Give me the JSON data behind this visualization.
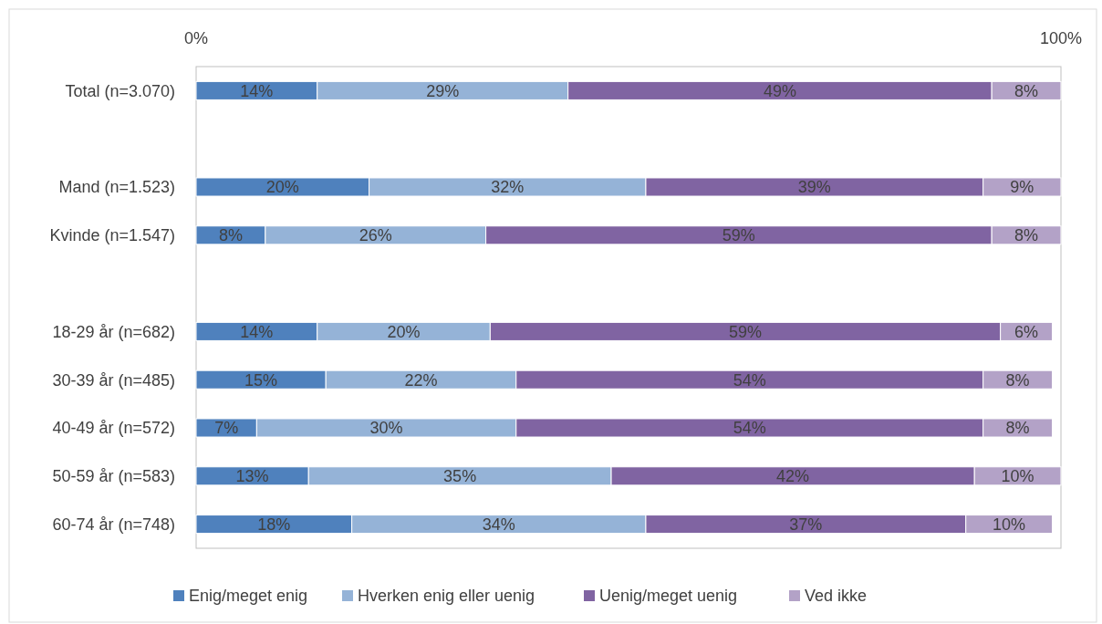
{
  "chart_data": {
    "type": "bar",
    "orientation": "horizontal",
    "stacked": true,
    "categories": [
      "Total (n=3.070)",
      null,
      "Mand (n=1.523)",
      "Kvinde (n=1.547)",
      null,
      "18-29 år (n=682)",
      "30-39 år (n=485)",
      "40-49 år (n=572)",
      "50-59 år (n=583)",
      "60-74 år (n=748)"
    ],
    "series": [
      {
        "name": "Enig/meget enig",
        "color": "#4f81bd",
        "values": [
          14,
          null,
          20,
          8,
          null,
          14,
          15,
          7,
          13,
          18
        ],
        "value_labels": [
          "14%",
          null,
          "20%",
          "8%",
          null,
          "14%",
          "15%",
          "7%",
          "13%",
          "18%"
        ]
      },
      {
        "name": "Hverken enig eller uenig",
        "color": "#95b3d7",
        "values": [
          29,
          null,
          32,
          25.5,
          null,
          20,
          22,
          30,
          35,
          34
        ],
        "value_labels": [
          "29%",
          null,
          "32%",
          "26%",
          null,
          "20%",
          "22%",
          "30%",
          "35%",
          "34%"
        ]
      },
      {
        "name": "Uenig/meget uenig",
        "color": "#8064a2",
        "values": [
          49,
          null,
          39,
          58.5,
          null,
          59,
          54,
          54,
          42,
          37
        ],
        "value_labels": [
          "49%",
          null,
          "39%",
          "59%",
          null,
          "59%",
          "54%",
          "54%",
          "42%",
          "37%"
        ]
      },
      {
        "name": "Ved ikke",
        "color": "#b3a2c7",
        "values": [
          8,
          null,
          9,
          8,
          null,
          6,
          8,
          8,
          10,
          10
        ],
        "value_labels": [
          "8%",
          null,
          "9%",
          "8%",
          null,
          "6%",
          "8%",
          "8%",
          "10%",
          "10%"
        ]
      }
    ],
    "xlim": [
      0,
      100
    ],
    "xticks": [
      {
        "value": 0,
        "label": "0%"
      },
      {
        "value": 100,
        "label": "100%"
      }
    ],
    "grid": false,
    "legend": "bottom"
  }
}
